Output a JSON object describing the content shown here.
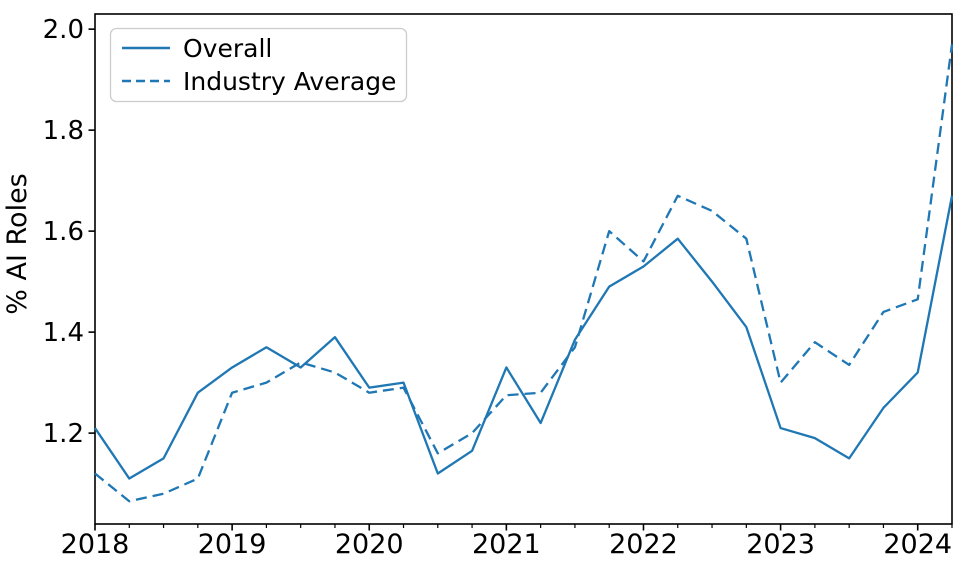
{
  "figure": {
    "background": "#ffffff",
    "axis_color": "#000000",
    "line_color": "#1f77b4",
    "legend_border_color": "#cccccc"
  },
  "legend": {
    "entries": [
      {
        "label": "Overall",
        "style": "solid"
      },
      {
        "label": "Industry Average",
        "style": "dashed"
      }
    ]
  },
  "chart_data": {
    "type": "line",
    "title": "",
    "xlabel": "",
    "ylabel": "% AI Roles",
    "grid": false,
    "legend_position": "upper left",
    "xlim": [
      2018.0,
      2024.25
    ],
    "ylim": [
      1.02,
      2.03
    ],
    "x_ticks": [
      "2018",
      "2019",
      "2020",
      "2021",
      "2022",
      "2023",
      "2024"
    ],
    "y_ticks": [
      "1.2",
      "1.4",
      "1.6",
      "1.8",
      "2.0"
    ],
    "x_minor_tick_step": 0.25,
    "x": [
      2018.0,
      2018.25,
      2018.5,
      2018.75,
      2019.0,
      2019.25,
      2019.5,
      2019.75,
      2020.0,
      2020.25,
      2020.5,
      2020.75,
      2021.0,
      2021.25,
      2021.5,
      2021.75,
      2022.0,
      2022.25,
      2022.5,
      2022.75,
      2023.0,
      2023.25,
      2023.5,
      2023.75,
      2024.0,
      2024.25
    ],
    "series": [
      {
        "name": "Overall",
        "style": "solid",
        "color": "#1f77b4",
        "values": [
          1.21,
          1.11,
          1.15,
          1.28,
          1.33,
          1.37,
          1.33,
          1.39,
          1.29,
          1.3,
          1.12,
          1.165,
          1.33,
          1.22,
          1.385,
          1.49,
          1.53,
          1.585,
          1.5,
          1.41,
          1.21,
          1.19,
          1.15,
          1.25,
          1.32,
          1.67
        ]
      },
      {
        "name": "Industry Average",
        "style": "dashed",
        "color": "#1f77b4",
        "values": [
          1.12,
          1.065,
          1.08,
          1.11,
          1.28,
          1.3,
          1.34,
          1.32,
          1.28,
          1.29,
          1.16,
          1.2,
          1.275,
          1.28,
          1.37,
          1.6,
          1.54,
          1.67,
          1.64,
          1.585,
          1.3,
          1.38,
          1.335,
          1.44,
          1.465,
          1.97
        ]
      }
    ]
  }
}
